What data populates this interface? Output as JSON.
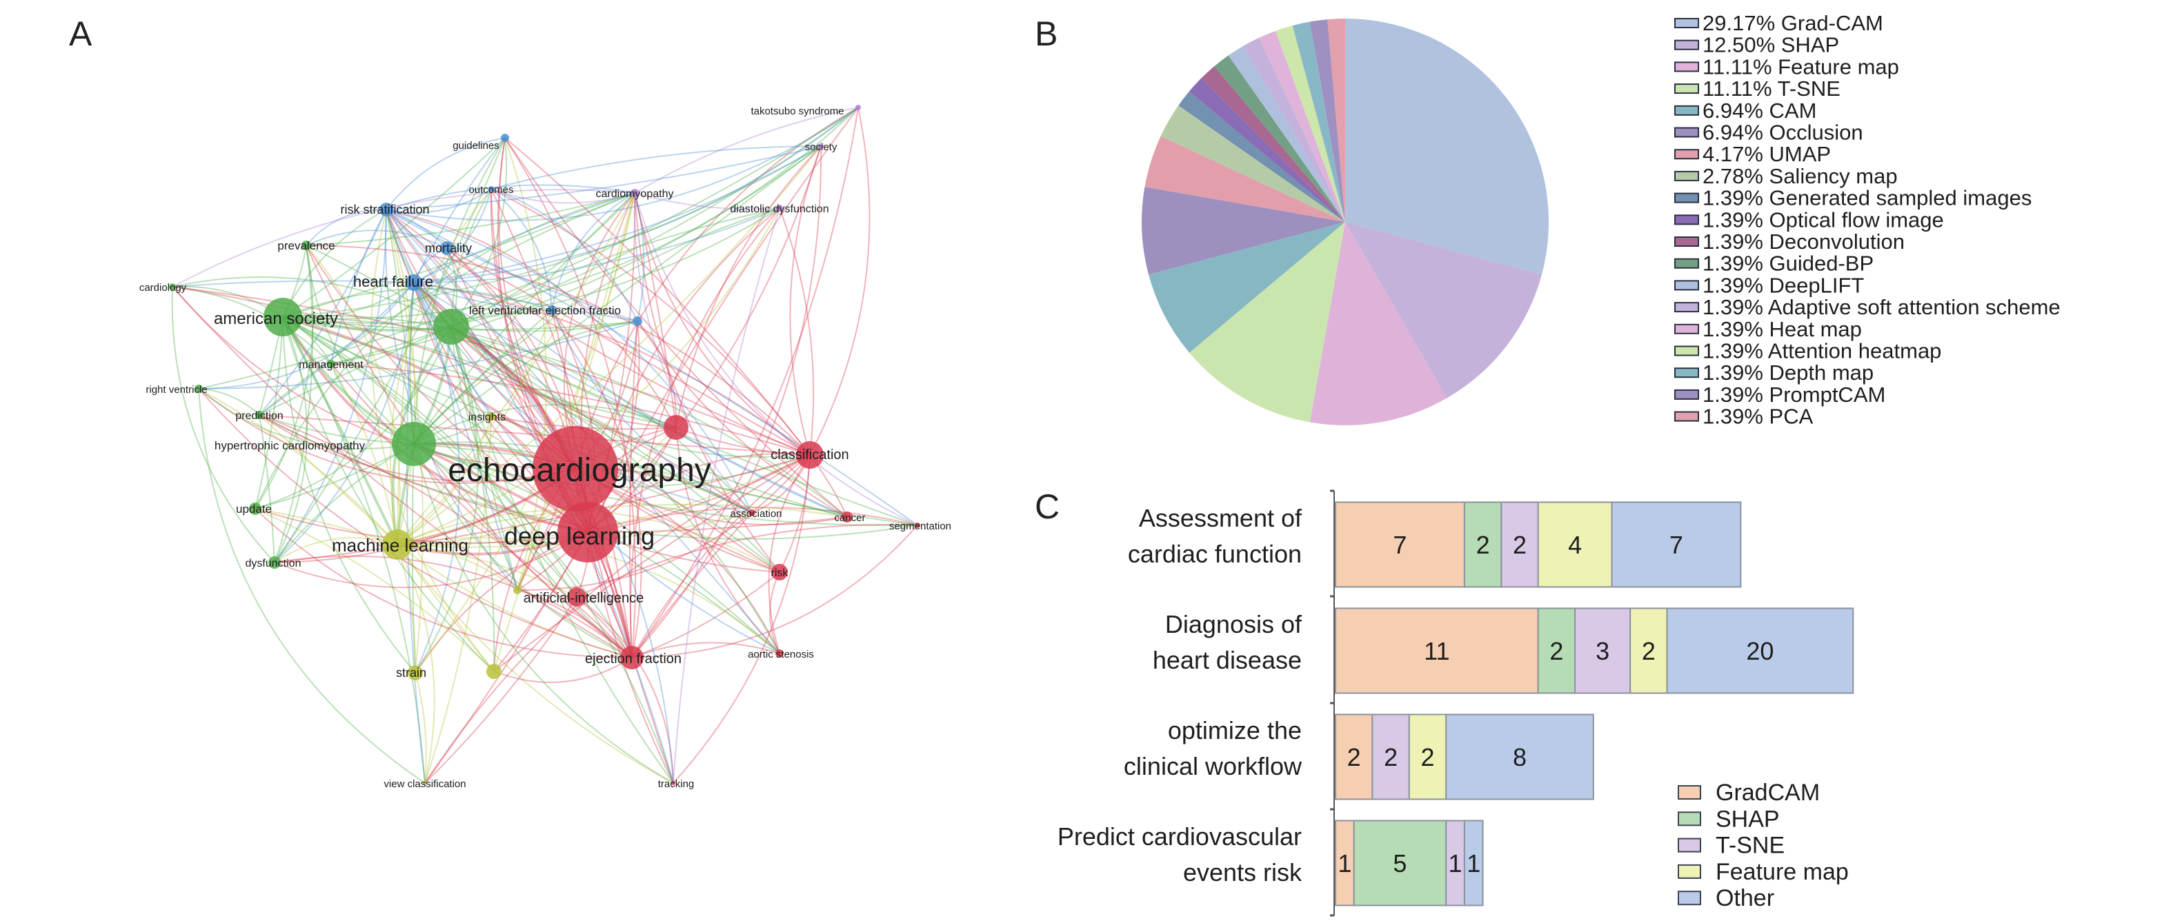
{
  "panels": {
    "a": "A",
    "b": "B",
    "c": "C"
  },
  "network": {
    "cluster_colors": {
      "red": "#d8394f",
      "green": "#4fae4a",
      "blue": "#4a8fd3",
      "yellow": "#b8c23a",
      "purple": "#b07fd3"
    },
    "nodes": [
      {
        "label": "echocardiography",
        "cluster": "red"
      },
      {
        "label": "deep learning",
        "cluster": "red"
      },
      {
        "label": "american society",
        "cluster": "green"
      },
      {
        "label": "hypertrophic cardiomyopathy",
        "cluster": "green"
      },
      {
        "cluster": "green"
      },
      {
        "label": "machine learning",
        "cluster": "yellow"
      },
      {
        "cluster": "red"
      },
      {
        "label": "classification",
        "cluster": "red"
      },
      {
        "label": "artificial-intelligence",
        "cluster": "red"
      },
      {
        "label": "ejection fraction",
        "cluster": "red"
      },
      {
        "label": "risk",
        "cluster": "red"
      },
      {
        "label": "cancer",
        "cluster": "red"
      },
      {
        "label": "association",
        "cluster": "red"
      },
      {
        "label": "segmentation",
        "cluster": "red"
      },
      {
        "label": "aortic stenosis",
        "cluster": "red"
      },
      {
        "label": "tracking",
        "cluster": "red"
      },
      {
        "label": "view classification",
        "cluster": "yellow"
      },
      {
        "label": "strain",
        "cluster": "yellow"
      },
      {
        "cluster": "yellow"
      },
      {
        "cluster": "yellow"
      },
      {
        "label": "insights",
        "cluster": "yellow"
      },
      {
        "label": "update",
        "cluster": "green"
      },
      {
        "label": "dysfunction",
        "cluster": "green"
      },
      {
        "label": "prediction",
        "cluster": "green"
      },
      {
        "label": "right ventricle",
        "cluster": "green"
      },
      {
        "label": "management",
        "cluster": "green"
      },
      {
        "label": "cardiology",
        "cluster": "green"
      },
      {
        "label": "prevalence",
        "cluster": "green"
      },
      {
        "label": "risk stratification",
        "cluster": "blue"
      },
      {
        "label": "heart failure",
        "cluster": "blue"
      },
      {
        "label": "mortality",
        "cluster": "blue"
      },
      {
        "label": "guidelines",
        "cluster": "blue"
      },
      {
        "label": "outcomes",
        "cluster": "blue"
      },
      {
        "label": "left ventricular ejection fractio",
        "cluster": "blue"
      },
      {
        "cluster": "blue"
      },
      {
        "label": "cardiomyopathy",
        "cluster": "purple"
      },
      {
        "label": "takotsubo syndrome",
        "cluster": "purple"
      },
      {
        "label": "society",
        "cluster": "purple"
      },
      {
        "label": "diastolic dysfunction",
        "cluster": "purple"
      }
    ]
  },
  "chart_data": [
    {
      "type": "pie",
      "title": "",
      "start": "top, clockwise",
      "legend_position": "right",
      "slices": [
        {
          "label": "29.17% Grad-CAM",
          "name": "Grad-CAM",
          "value": 29.17,
          "color": "#b1c2de"
        },
        {
          "label": "12.50% SHAP",
          "name": "SHAP",
          "value": 12.5,
          "color": "#c4b2da"
        },
        {
          "label": "11.11% Feature map",
          "name": "Feature map",
          "value": 11.11,
          "color": "#dfb3d9"
        },
        {
          "label": "11.11% T-SNE",
          "name": "T-SNE",
          "value": 11.11,
          "color": "#cbe5ae"
        },
        {
          "label": "6.94% CAM",
          "name": "CAM",
          "value": 6.94,
          "color": "#88b7c4"
        },
        {
          "label": "6.94% Occlusion",
          "name": "Occlusion",
          "value": 6.94,
          "color": "#9d90bf"
        },
        {
          "label": "4.17% UMAP",
          "name": "UMAP",
          "value": 4.17,
          "color": "#e29fab"
        },
        {
          "label": "2.78% Saliency map",
          "name": "Saliency map",
          "value": 2.78,
          "color": "#b5cba8"
        },
        {
          "label": "1.39% Generated sampled images",
          "name": "Generated sampled images",
          "value": 1.39,
          "color": "#7391b0"
        },
        {
          "label": "1.39% Optical flow image",
          "name": "Optical flow image",
          "value": 1.39,
          "color": "#8a6cb6"
        },
        {
          "label": "1.39% Deconvolution",
          "name": "Deconvolution",
          "value": 1.39,
          "color": "#a86892"
        },
        {
          "label": "1.39% Guided-BP",
          "name": "Guided-BP",
          "value": 1.39,
          "color": "#73a085"
        },
        {
          "label": "1.39% DeepLIFT",
          "name": "DeepLIFT",
          "value": 1.39,
          "color": "#aec0de"
        },
        {
          "label": "1.39% Adaptive soft attention scheme",
          "name": "Adaptive soft attention scheme",
          "value": 1.39,
          "color": "#c4b2dc"
        },
        {
          "label": "1.39% Heat map",
          "name": "Heat map",
          "value": 1.39,
          "color": "#e0b4da"
        },
        {
          "label": "1.39% Attention heatmap",
          "name": "Attention heatmap",
          "value": 1.39,
          "color": "#cde6ac"
        },
        {
          "label": "1.39% Depth map",
          "name": "Depth map",
          "value": 1.39,
          "color": "#88b8c6"
        },
        {
          "label": "1.39% PromptCAM",
          "name": "PromptCAM",
          "value": 1.39,
          "color": "#9e91c2"
        },
        {
          "label": "1.39% PCA",
          "name": "PCA",
          "value": 1.39,
          "color": "#e3a0ad"
        }
      ]
    },
    {
      "type": "bar",
      "orientation": "horizontal",
      "stacked": true,
      "legend_position": "bottom-right",
      "categories": [
        {
          "lines": [
            "Assessment of",
            "cardiac function"
          ]
        },
        {
          "lines": [
            "Diagnosis of",
            "heart disease"
          ]
        },
        {
          "lines": [
            "optimize the",
            "clinical workflow"
          ]
        },
        {
          "lines": [
            "Predict cardiovascular",
            "events risk"
          ]
        }
      ],
      "series": [
        {
          "name": "GradCAM",
          "color": "#f6cfb2",
          "values": [
            7,
            11,
            2,
            1
          ]
        },
        {
          "name": "SHAP",
          "color": "#b5dcb4",
          "values": [
            2,
            2,
            0,
            5
          ]
        },
        {
          "name": "T-SNE",
          "color": "#d8c9e6",
          "values": [
            2,
            3,
            2,
            1
          ]
        },
        {
          "name": "Feature map",
          "color": "#eef3b5",
          "values": [
            4,
            2,
            2,
            0
          ]
        },
        {
          "name": "Other",
          "color": "#b9cbe8",
          "values": [
            7,
            20,
            8,
            1
          ]
        }
      ]
    }
  ]
}
